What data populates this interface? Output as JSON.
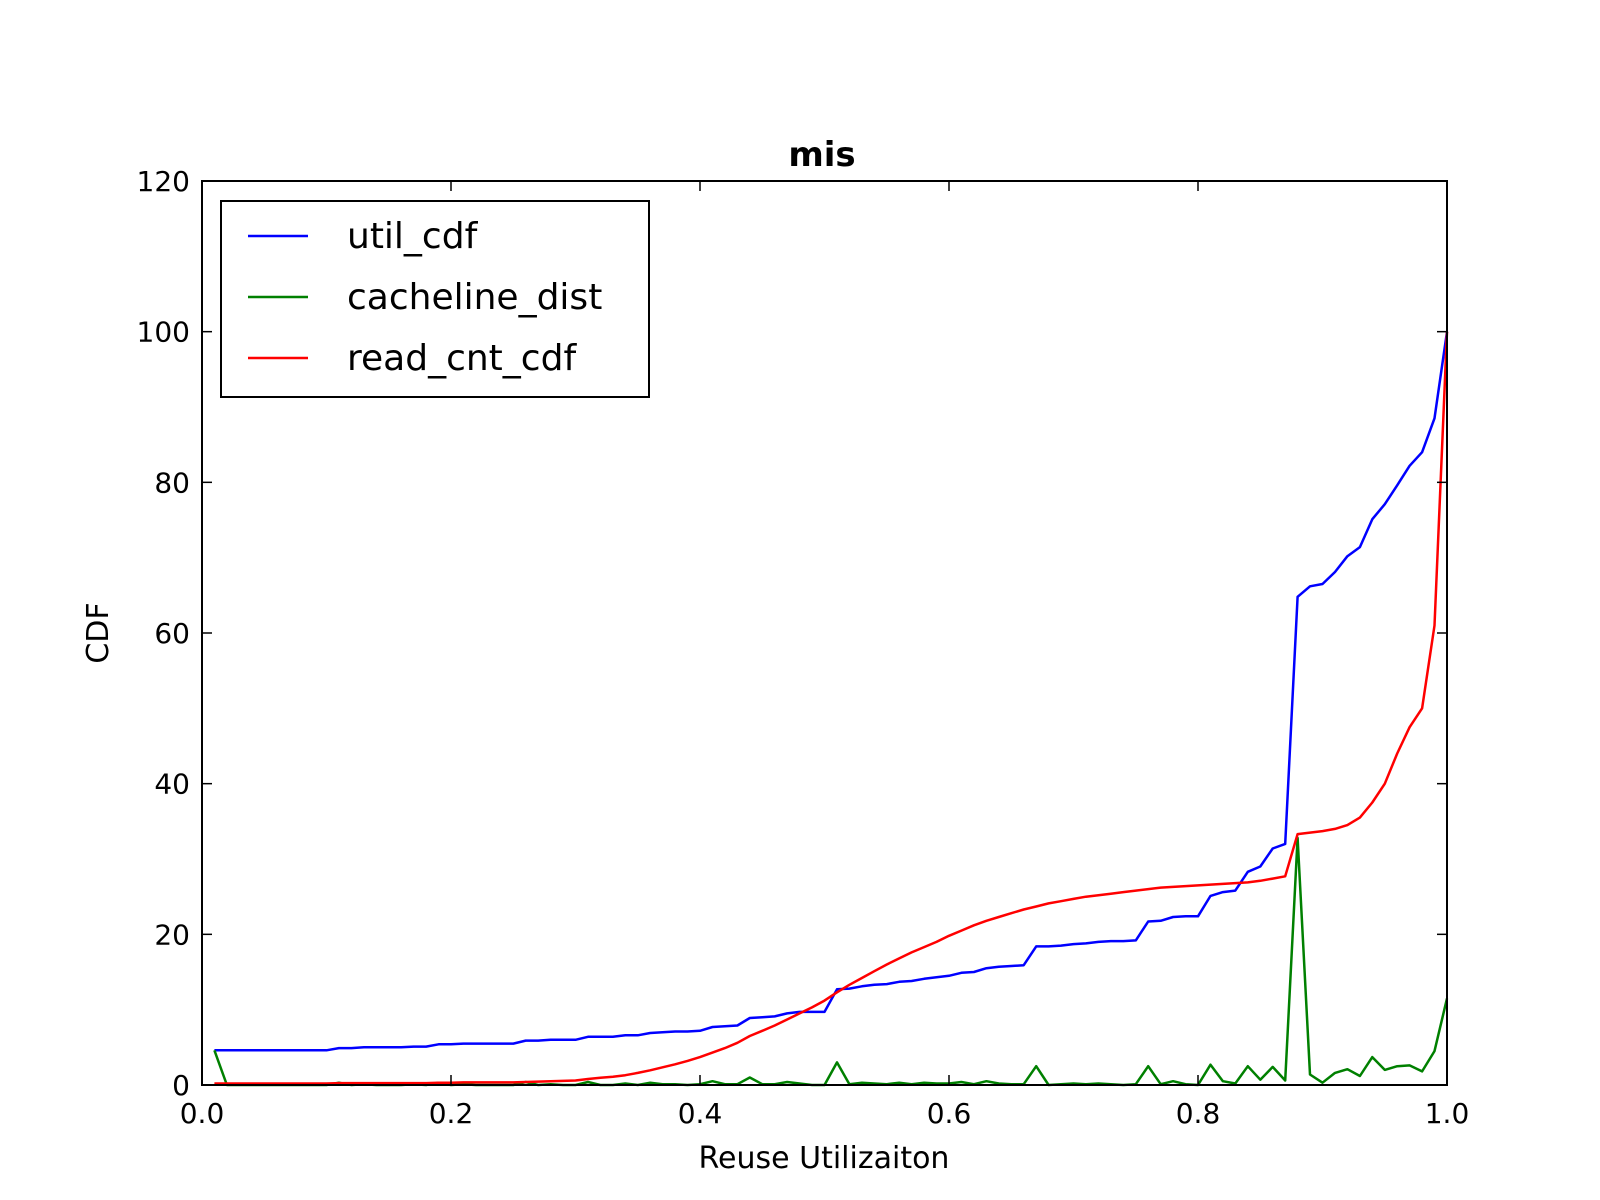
{
  "chart_data": {
    "type": "line",
    "title": "mis",
    "xlabel": "Reuse Utilizaiton",
    "ylabel": "CDF",
    "xlim": [
      0.0,
      1.0
    ],
    "ylim": [
      0,
      120
    ],
    "xticks": [
      "0.0",
      "0.2",
      "0.4",
      "0.6",
      "0.8",
      "1.0"
    ],
    "xtick_values": [
      0.0,
      0.2,
      0.4,
      0.6,
      0.8,
      1.0
    ],
    "yticks": [
      "0",
      "20",
      "40",
      "60",
      "80",
      "100",
      "120"
    ],
    "ytick_values": [
      0,
      20,
      40,
      60,
      80,
      100,
      120
    ],
    "grid": false,
    "legend_position": "top-left",
    "x": [
      0.01,
      0.02,
      0.03,
      0.04,
      0.05,
      0.06,
      0.07,
      0.08,
      0.09,
      0.1,
      0.11,
      0.12,
      0.13,
      0.14,
      0.15,
      0.16,
      0.17,
      0.18,
      0.19,
      0.2,
      0.21,
      0.22,
      0.23,
      0.24,
      0.25,
      0.26,
      0.27,
      0.28,
      0.29,
      0.3,
      0.31,
      0.32,
      0.33,
      0.34,
      0.35,
      0.36,
      0.37,
      0.38,
      0.39,
      0.4,
      0.41,
      0.42,
      0.43,
      0.44,
      0.45,
      0.46,
      0.47,
      0.48,
      0.49,
      0.5,
      0.51,
      0.52,
      0.53,
      0.54,
      0.55,
      0.56,
      0.57,
      0.58,
      0.59,
      0.6,
      0.61,
      0.62,
      0.63,
      0.64,
      0.65,
      0.66,
      0.67,
      0.68,
      0.69,
      0.7,
      0.71,
      0.72,
      0.73,
      0.74,
      0.75,
      0.76,
      0.77,
      0.78,
      0.79,
      0.8,
      0.81,
      0.82,
      0.83,
      0.84,
      0.85,
      0.86,
      0.87,
      0.88,
      0.89,
      0.9,
      0.91,
      0.92,
      0.93,
      0.94,
      0.95,
      0.96,
      0.97,
      0.98,
      0.99,
      1.0
    ],
    "series": [
      {
        "name": "util_cdf",
        "color": "#0000ff",
        "values": [
          4.6,
          4.6,
          4.6,
          4.6,
          4.6,
          4.6,
          4.6,
          4.6,
          4.6,
          4.6,
          4.9,
          4.9,
          5.0,
          5.0,
          5.0,
          5.0,
          5.1,
          5.1,
          5.4,
          5.4,
          5.5,
          5.5,
          5.5,
          5.5,
          5.5,
          5.9,
          5.9,
          6.0,
          6.0,
          6.0,
          6.4,
          6.4,
          6.4,
          6.6,
          6.6,
          6.9,
          7.0,
          7.1,
          7.1,
          7.2,
          7.7,
          7.8,
          7.9,
          8.9,
          9.0,
          9.1,
          9.5,
          9.7,
          9.7,
          9.7,
          12.7,
          12.8,
          13.1,
          13.3,
          13.4,
          13.7,
          13.8,
          14.1,
          14.3,
          14.5,
          14.9,
          15.0,
          15.5,
          15.7,
          15.8,
          15.9,
          18.4,
          18.4,
          18.5,
          18.7,
          18.8,
          19.0,
          19.1,
          19.1,
          19.2,
          21.7,
          21.8,
          22.3,
          22.4,
          22.4,
          25.1,
          25.6,
          25.8,
          28.3,
          29.0,
          31.4,
          32.0,
          64.8,
          66.2,
          66.5,
          68.1,
          70.2,
          71.4,
          75.1,
          77.1,
          79.6,
          82.2,
          84.0,
          88.5,
          100.0
        ]
      },
      {
        "name": "cacheline_dist",
        "color": "#008000",
        "values": [
          4.6,
          0.0,
          0.0,
          0.0,
          0.0,
          0.0,
          0.0,
          0.0,
          0.0,
          0.0,
          0.3,
          0.0,
          0.1,
          0.0,
          0.0,
          0.0,
          0.1,
          0.0,
          0.3,
          0.0,
          0.1,
          0.0,
          0.0,
          0.0,
          0.0,
          0.4,
          0.0,
          0.1,
          0.0,
          0.0,
          0.4,
          0.0,
          0.0,
          0.2,
          0.0,
          0.3,
          0.1,
          0.1,
          0.0,
          0.1,
          0.5,
          0.1,
          0.1,
          1.0,
          0.1,
          0.1,
          0.4,
          0.2,
          0.0,
          0.0,
          3.0,
          0.1,
          0.3,
          0.2,
          0.1,
          0.3,
          0.1,
          0.3,
          0.2,
          0.2,
          0.4,
          0.1,
          0.5,
          0.2,
          0.1,
          0.1,
          2.5,
          0.0,
          0.1,
          0.2,
          0.1,
          0.2,
          0.1,
          0.0,
          0.1,
          2.5,
          0.1,
          0.5,
          0.1,
          0.0,
          2.7,
          0.5,
          0.2,
          2.5,
          0.7,
          2.4,
          0.6,
          32.8,
          1.4,
          0.3,
          1.6,
          2.1,
          1.2,
          3.7,
          2.0,
          2.5,
          2.6,
          1.8,
          4.5,
          11.5
        ]
      },
      {
        "name": "read_cnt_cdf",
        "color": "#ff0000",
        "values": [
          0.2,
          0.2,
          0.2,
          0.2,
          0.2,
          0.2,
          0.2,
          0.2,
          0.2,
          0.2,
          0.25,
          0.25,
          0.25,
          0.25,
          0.25,
          0.25,
          0.25,
          0.25,
          0.3,
          0.3,
          0.35,
          0.35,
          0.35,
          0.35,
          0.35,
          0.4,
          0.45,
          0.5,
          0.55,
          0.6,
          0.8,
          0.95,
          1.1,
          1.3,
          1.6,
          1.95,
          2.35,
          2.75,
          3.2,
          3.7,
          4.3,
          4.9,
          5.6,
          6.5,
          7.2,
          7.9,
          8.7,
          9.5,
          10.3,
          11.2,
          12.3,
          13.3,
          14.2,
          15.1,
          16.0,
          16.8,
          17.6,
          18.3,
          19.0,
          19.8,
          20.5,
          21.2,
          21.8,
          22.3,
          22.8,
          23.3,
          23.7,
          24.1,
          24.4,
          24.7,
          25.0,
          25.2,
          25.4,
          25.6,
          25.8,
          26.0,
          26.2,
          26.3,
          26.4,
          26.5,
          26.6,
          26.7,
          26.8,
          26.9,
          27.1,
          27.4,
          27.7,
          33.3,
          33.5,
          33.7,
          34.0,
          34.5,
          35.5,
          37.5,
          40.0,
          44.0,
          47.5,
          50.0,
          61.0,
          100.0
        ]
      }
    ]
  }
}
